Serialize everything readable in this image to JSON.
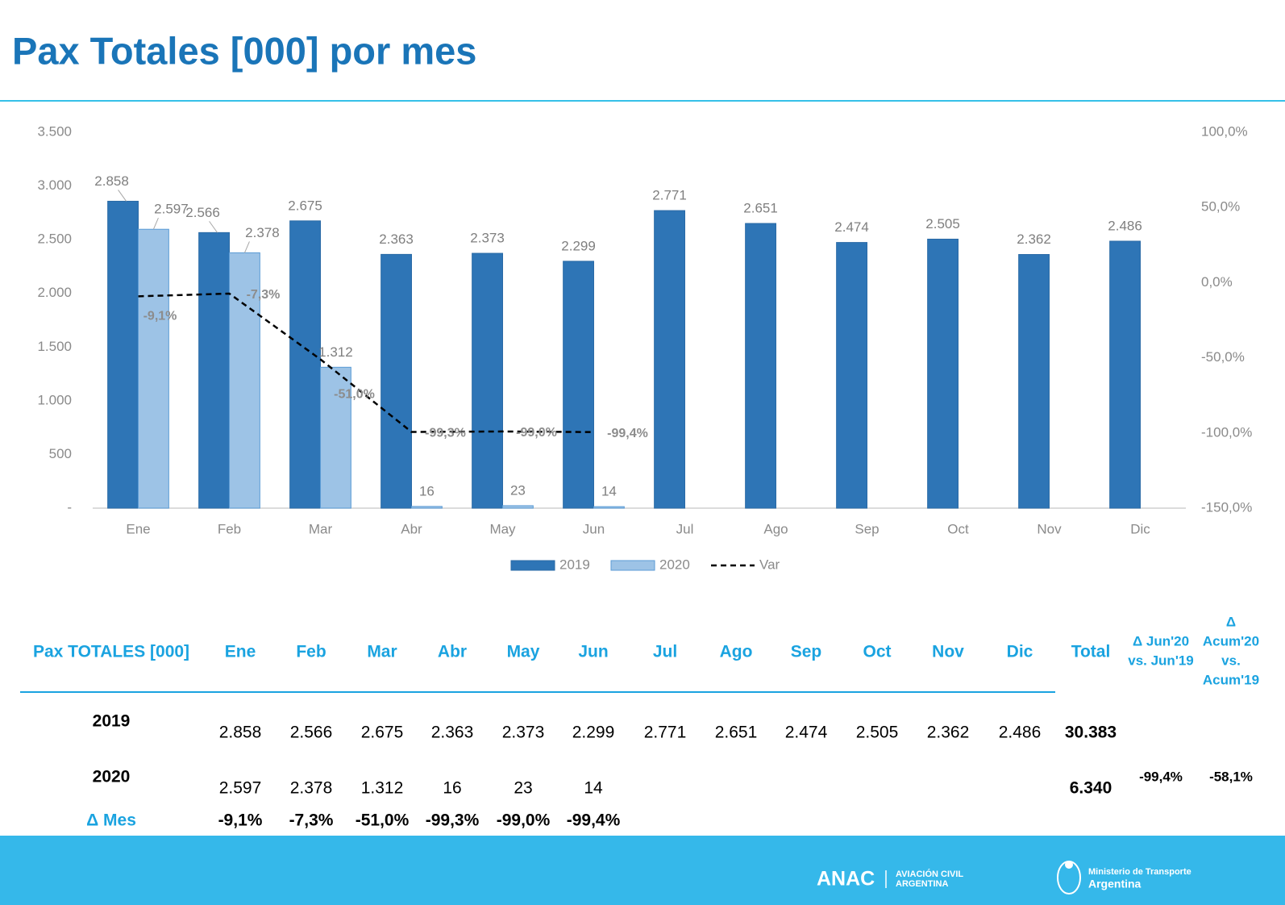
{
  "chart_data": {
    "type": "bar",
    "title": "Pax Totales [000] por mes",
    "categories": [
      "Ene",
      "Feb",
      "Mar",
      "Abr",
      "May",
      "Jun",
      "Jul",
      "Ago",
      "Sep",
      "Oct",
      "Nov",
      "Dic"
    ],
    "series": [
      {
        "name": "2019",
        "color": "#2e75b6",
        "values": [
          2858,
          2566,
          2675,
          2363,
          2373,
          2299,
          2771,
          2651,
          2474,
          2505,
          2362,
          2486
        ],
        "value_labels": [
          "2.858",
          "2.566",
          "2.675",
          "2.363",
          "2.373",
          "2.299",
          "2.771",
          "2.651",
          "2.474",
          "2.505",
          "2.362",
          "2.486"
        ]
      },
      {
        "name": "2020",
        "color": "#9dc3e6",
        "values": [
          2597,
          2378,
          1312,
          16,
          23,
          14,
          null,
          null,
          null,
          null,
          null,
          null
        ],
        "value_labels": [
          "2.597",
          "2.378",
          "1.312",
          "16",
          "23",
          "14",
          null,
          null,
          null,
          null,
          null,
          null
        ]
      },
      {
        "name": "Var",
        "type": "line",
        "axis": "y2",
        "color": "#000000",
        "values": [
          -9.1,
          -7.3,
          -51.0,
          -99.3,
          -99.0,
          -99.4,
          null,
          null,
          null,
          null,
          null,
          null
        ],
        "value_labels": [
          "-9,1%",
          "-7,3%",
          "-51,0%",
          "-99,3%",
          "-99,0%",
          "-99,4%",
          null,
          null,
          null,
          null,
          null,
          null
        ]
      }
    ],
    "ylim": [
      0,
      3500
    ],
    "yticks": [
      {
        "value": 0,
        "label": "-"
      },
      500,
      {
        "value": 1000,
        "label": "1.000"
      },
      {
        "value": 1500,
        "label": "1.500"
      },
      {
        "value": 2000,
        "label": "2.000"
      },
      {
        "value": 2500,
        "label": "2.500"
      },
      {
        "value": 3000,
        "label": "3.000"
      },
      {
        "value": 3500,
        "label": "3.500"
      }
    ],
    "y2lim": [
      -150,
      100
    ],
    "y2ticks": [
      {
        "value": -150,
        "label": "-150,0%"
      },
      {
        "value": -100,
        "label": "-100,0%"
      },
      {
        "value": -50,
        "label": "-50,0%"
      },
      {
        "value": 0,
        "label": "0,0%"
      },
      {
        "value": 50,
        "label": "50,0%"
      },
      {
        "value": 100,
        "label": "100,0%"
      }
    ],
    "grid": false,
    "legend": "bottom"
  },
  "table": {
    "header": [
      "Pax TOTALES [000]",
      "Ene",
      "Feb",
      "Mar",
      "Abr",
      "May",
      "Jun",
      "Jul",
      "Ago",
      "Sep",
      "Oct",
      "Nov",
      "Dic",
      "Total"
    ],
    "delta_headers": [
      [
        "Δ Jun'20",
        "vs. Jun'19"
      ],
      [
        "Δ",
        "Acum'20",
        "vs.",
        "Acum'19"
      ]
    ],
    "rows": [
      {
        "label": "2019",
        "months": [
          "2.858",
          "2.566",
          "2.675",
          "2.363",
          "2.373",
          "2.299",
          "2.771",
          "2.651",
          "2.474",
          "2.505",
          "2.362",
          "2.486"
        ],
        "total": "30.383"
      },
      {
        "label": "2020",
        "months": [
          "2.597",
          "2.378",
          "1.312",
          "16",
          "23",
          "14"
        ],
        "total": "6.340",
        "deltas": [
          "-99,4%",
          "-58,1%"
        ]
      },
      {
        "label": "Δ Mes",
        "months": [
          "-9,1%",
          "-7,3%",
          "-51,0%",
          "-99,3%",
          "-99,0%",
          "-99,4%"
        ]
      }
    ]
  },
  "footer": {
    "anac": "ANAC",
    "anac_sub": [
      "AVIACIÓN CIVIL",
      "ARGENTINA"
    ],
    "ministry": [
      "Ministerio de Transporte",
      "Argentina"
    ]
  }
}
